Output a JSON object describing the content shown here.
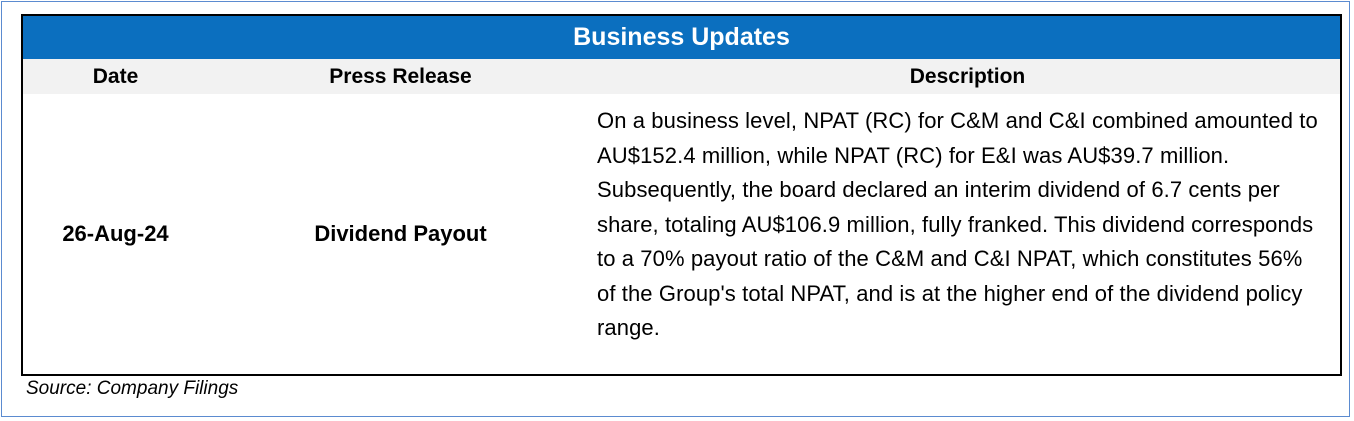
{
  "table": {
    "title": "Business Updates",
    "headers": {
      "date": "Date",
      "press_release": "Press Release",
      "description": "Description"
    },
    "rows": [
      {
        "date": "26-Aug-24",
        "press_release": "Dividend Payout",
        "description": "On a business level, NPAT (RC) for C&M and C&I combined amounted to AU$152.4 million, while NPAT (RC) for E&I was AU$39.7 million. Subsequently, the board declared an interim dividend of 6.7 cents per share, totaling AU$106.9 million, fully franked. This dividend corresponds to a 70% payout ratio of the C&M and C&I NPAT, which constitutes 56% of the Group's total NPAT, and is at the higher end of the dividend policy range."
      }
    ]
  },
  "source": "Source: Company Filings",
  "colors": {
    "title_bar": "#0b6fbf",
    "header_row": "#f2f2f2",
    "outer_border": "#5b8bd0"
  }
}
